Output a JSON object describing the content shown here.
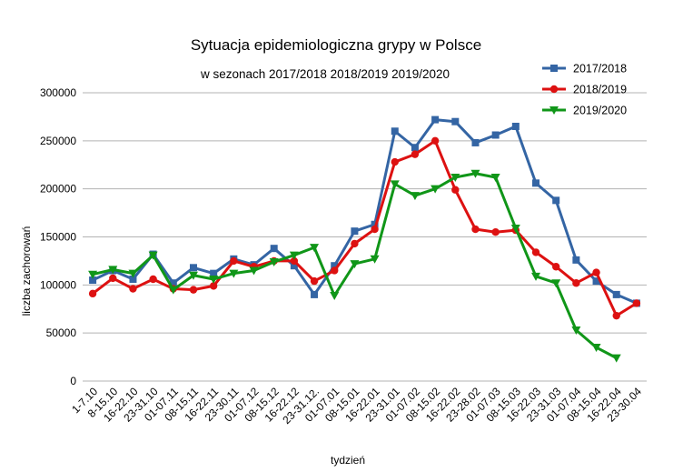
{
  "chart_data": {
    "type": "line",
    "title": "Sytuacja epidemiologiczna grypy w Polsce",
    "subtitle": "w sezonach 2017/2018 2018/2019 2019/2020",
    "xlabel": "tydzień",
    "ylabel": "liczba zachorowań",
    "ylim": [
      0,
      300000
    ],
    "yticks": [
      0,
      50000,
      100000,
      150000,
      200000,
      250000,
      300000
    ],
    "grid": "horizontal",
    "legend_position": "top-right",
    "categories": [
      "1-7.10",
      "8-15.10",
      "16-22.10",
      "23-31.10",
      "01-07.11",
      "08-15.11",
      "16-22.11",
      "23-30.11",
      "01-07.12",
      "08-15.12",
      "16-22.12",
      "23-31.12.",
      "01-07.01",
      "08-15.01",
      "16-22.01",
      "23-31.01",
      "01-07.02",
      "08-15.02",
      "16-22.02",
      "23-28.02",
      "01-07.03",
      "08-15.03",
      "16-22.03",
      "23-31.03",
      "01-07.04",
      "08-15.04",
      "16-22.04",
      "23-30.04"
    ],
    "series": [
      {
        "name": "2017/2018",
        "color": "#3465a4",
        "marker": "square",
        "values": [
          105000,
          115000,
          106000,
          132000,
          102000,
          118000,
          112000,
          127000,
          121000,
          138000,
          120000,
          90000,
          120000,
          156000,
          163000,
          260000,
          243000,
          272000,
          270000,
          248000,
          256000,
          265000,
          206000,
          188000,
          126000,
          104000,
          90000,
          81000
        ]
      },
      {
        "name": "2018/2019",
        "color": "#dd1111",
        "marker": "circle",
        "values": [
          91000,
          107000,
          96000,
          106000,
          96000,
          95000,
          99000,
          125000,
          119000,
          125000,
          125000,
          104000,
          115000,
          143000,
          158000,
          228000,
          236000,
          250000,
          199000,
          158000,
          155000,
          157000,
          134000,
          119000,
          102000,
          113000,
          68000,
          81000
        ]
      },
      {
        "name": "2019/2020",
        "color": "#109618",
        "marker": "triangle-down",
        "values": [
          111000,
          116000,
          112000,
          131000,
          95000,
          110000,
          106000,
          112000,
          115000,
          124000,
          131000,
          139000,
          89000,
          122000,
          127000,
          205000,
          193000,
          200000,
          212000,
          216000,
          212000,
          159000,
          109000,
          102000,
          53000,
          35000,
          24000,
          null
        ]
      }
    ]
  }
}
